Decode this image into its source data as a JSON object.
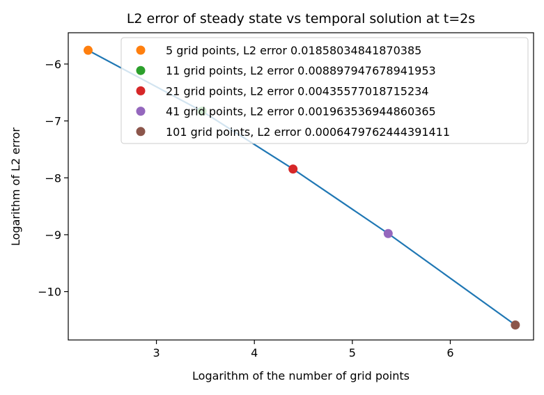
{
  "chart_data": {
    "type": "line",
    "title": "L2 error of steady state vs temporal solution at t=2s",
    "xlabel": "Logarithm of the number of grid points",
    "ylabel": "Logarithm of L2 error",
    "xlim": [
      2.1,
      6.85
    ],
    "ylim": [
      -10.85,
      -5.45
    ],
    "xticks": [
      3,
      4,
      5,
      6
    ],
    "xtick_labels": [
      "3",
      "4",
      "5",
      "6"
    ],
    "yticks": [
      -6,
      -7,
      -8,
      -9,
      -10
    ],
    "ytick_labels": [
      "−6",
      "−7",
      "−8",
      "−9",
      "−10"
    ],
    "grid": false,
    "legend_position": "top-right",
    "line_series": {
      "color": "#1f77b4",
      "x": [
        2.3026,
        3.4657,
        4.3944,
        5.366,
        6.664
      ],
      "y": [
        -5.7582,
        -6.8287,
        -7.8451,
        -8.9794,
        -10.5867
      ]
    },
    "series": [
      {
        "name": "5 grid points, L2 error 0.01858034841870385",
        "x": 2.3026,
        "y": -5.7582,
        "color": "#ff7f0e"
      },
      {
        "name": "11 grid points, L2 error 0.008897947678941953",
        "x": 3.4657,
        "y": -6.8287,
        "color": "#2ca02c"
      },
      {
        "name": "21 grid points, L2 error 0.00435577018715234",
        "x": 4.3944,
        "y": -7.8451,
        "color": "#d62728"
      },
      {
        "name": "41 grid points, L2 error 0.001963536944860365",
        "x": 5.366,
        "y": -8.9794,
        "color": "#9467bd"
      },
      {
        "name": "101 grid points, L2 error 0.0006479762444391411",
        "x": 6.664,
        "y": -10.5867,
        "color": "#8c564b"
      }
    ]
  }
}
